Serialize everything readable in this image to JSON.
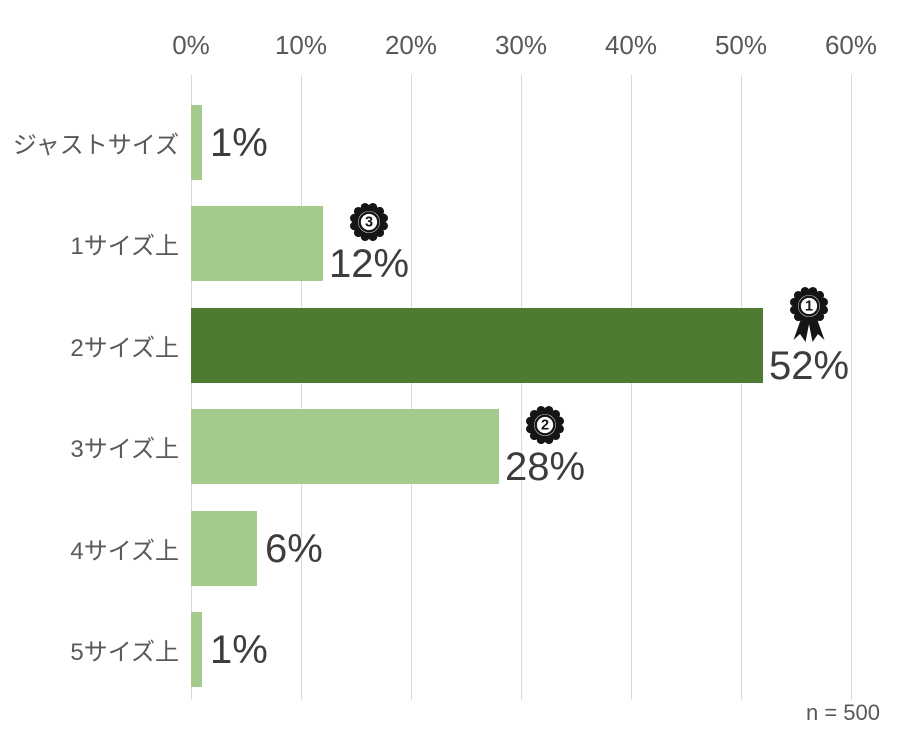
{
  "chart_data": {
    "type": "bar",
    "orientation": "horizontal",
    "title": "",
    "categories": [
      "ジャストサイズ",
      "1サイズ上",
      "2サイズ上",
      "3サイズ上",
      "4サイズ上",
      "5サイズ上"
    ],
    "values": [
      1,
      12,
      52,
      28,
      6,
      1
    ],
    "value_labels": [
      "1%",
      "12%",
      "52%",
      "28%",
      "6%",
      "1%"
    ],
    "ranks": [
      null,
      3,
      1,
      2,
      null,
      null
    ],
    "x_ticks": [
      "0%",
      "10%",
      "20%",
      "30%",
      "40%",
      "50%",
      "60%"
    ],
    "xlim": [
      0,
      60
    ],
    "axis_position": "top",
    "grid": "vertical",
    "legend": "none",
    "note": "n = 500",
    "highlight_index": 2,
    "colors": {
      "bar_default": "#a4cb8b",
      "bar_highlight": "#4e7b32",
      "grid": "#d9d9d9",
      "axis_text": "#595959",
      "category_text": "#595959",
      "value_text": "#3d3d3d",
      "medal": "#151515",
      "background": "#ffffff"
    }
  }
}
